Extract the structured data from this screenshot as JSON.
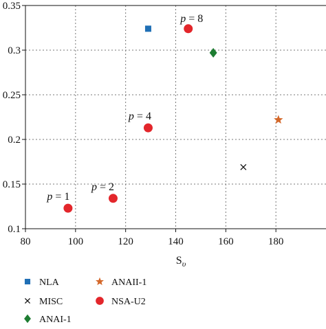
{
  "chart_data": {
    "type": "scatter",
    "xlabel": "S",
    "xlabel_sub": "υ",
    "ylabel": "",
    "xlim": [
      80,
      200
    ],
    "ylim": [
      0.1,
      0.35
    ],
    "xticks": [
      80,
      100,
      120,
      140,
      160,
      180
    ],
    "xtick_labels": [
      "80",
      "100",
      "120",
      "140",
      "160",
      "180"
    ],
    "yticks": [
      0.1,
      0.15,
      0.2,
      0.25,
      0.3,
      0.35
    ],
    "ytick_labels": [
      "0.1",
      "0.15",
      "0.2",
      "0.25",
      "0.3",
      "0.35"
    ],
    "grid": true,
    "legend_position": "bottom",
    "series": [
      {
        "name": "NLA",
        "marker": "square",
        "color": "#1f6fb5",
        "points": [
          {
            "x": 129,
            "y": 0.324
          }
        ]
      },
      {
        "name": "MISC",
        "marker": "x",
        "color": "#111111",
        "points": [
          {
            "x": 167,
            "y": 0.169
          }
        ]
      },
      {
        "name": "ANAI-1",
        "marker": "diamond",
        "color": "#1e7d32",
        "points": [
          {
            "x": 155,
            "y": 0.297
          }
        ]
      },
      {
        "name": "ANAII-1",
        "marker": "star",
        "color": "#d4682a",
        "points": [
          {
            "x": 181,
            "y": 0.222
          }
        ]
      },
      {
        "name": "NSA-U2",
        "marker": "circle",
        "color": "#e3262b",
        "points": [
          {
            "x": 97,
            "y": 0.123,
            "label": "p = 1"
          },
          {
            "x": 115,
            "y": 0.134,
            "label": "p = 2"
          },
          {
            "x": 129,
            "y": 0.213,
            "label": "p = 4"
          },
          {
            "x": 145,
            "y": 0.324,
            "label": "p = 8"
          }
        ]
      }
    ]
  }
}
